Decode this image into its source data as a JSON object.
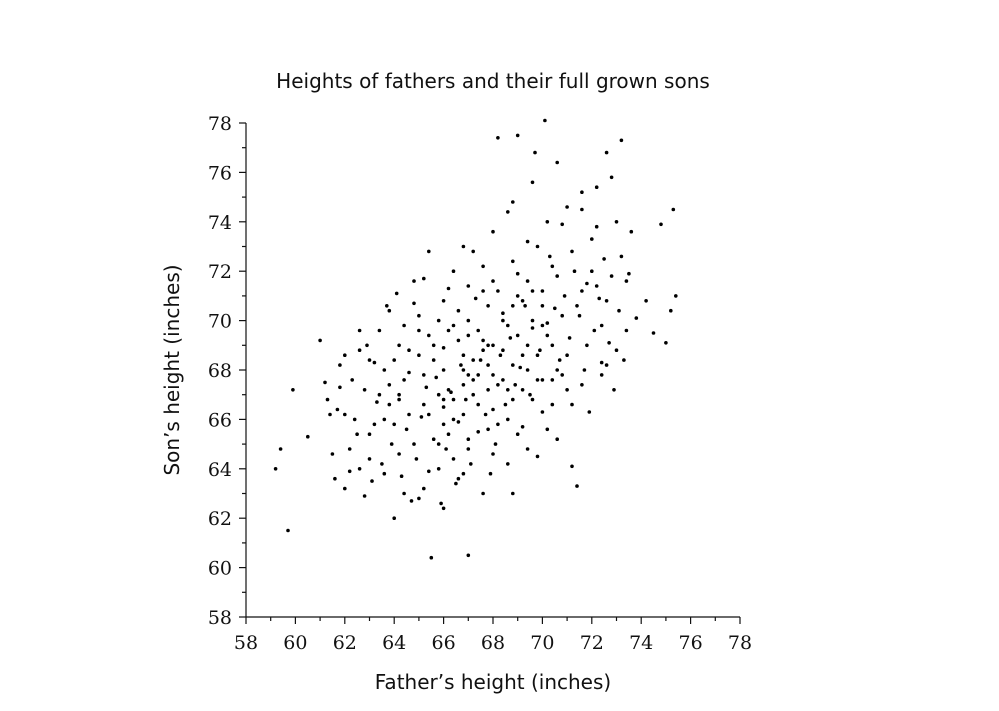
{
  "chart_data": {
    "type": "scatter",
    "title": "Heights of fathers and their full grown sons",
    "xlabel": "Father’s height (inches)",
    "ylabel": "Son’s height (inches)",
    "xlim": [
      58,
      78
    ],
    "ylim": [
      58,
      78
    ],
    "x_ticks": [
      "58",
      "60",
      "62",
      "64",
      "66",
      "68",
      "70",
      "72",
      "74",
      "76",
      "78"
    ],
    "y_ticks": [
      "58",
      "60",
      "62",
      "64",
      "66",
      "68",
      "70",
      "72",
      "74",
      "76",
      "78"
    ],
    "grid": false,
    "legend": "none",
    "point_color": "#000000",
    "points": [
      [
        59.2,
        64.0
      ],
      [
        59.4,
        64.8
      ],
      [
        59.7,
        61.5
      ],
      [
        59.9,
        67.2
      ],
      [
        60.5,
        65.3
      ],
      [
        61.0,
        69.2
      ],
      [
        61.2,
        67.5
      ],
      [
        61.3,
        66.8
      ],
      [
        61.5,
        64.6
      ],
      [
        61.6,
        63.6
      ],
      [
        61.7,
        66.4
      ],
      [
        61.8,
        67.3
      ],
      [
        62.0,
        63.2
      ],
      [
        62.0,
        66.2
      ],
      [
        62.2,
        63.9
      ],
      [
        62.3,
        67.6
      ],
      [
        62.5,
        65.4
      ],
      [
        62.6,
        64.0
      ],
      [
        62.6,
        68.8
      ],
      [
        62.8,
        62.9
      ],
      [
        62.9,
        69.0
      ],
      [
        63.0,
        65.4
      ],
      [
        63.1,
        63.5
      ],
      [
        63.2,
        68.3
      ],
      [
        63.3,
        66.7
      ],
      [
        63.4,
        69.6
      ],
      [
        63.5,
        64.2
      ],
      [
        63.6,
        66.0
      ],
      [
        63.7,
        70.6
      ],
      [
        63.8,
        67.4
      ],
      [
        63.9,
        65.0
      ],
      [
        64.0,
        62.0
      ],
      [
        64.0,
        68.4
      ],
      [
        64.1,
        71.1
      ],
      [
        64.2,
        66.8
      ],
      [
        64.3,
        63.7
      ],
      [
        64.4,
        69.8
      ],
      [
        64.5,
        65.6
      ],
      [
        64.6,
        67.9
      ],
      [
        64.7,
        62.7
      ],
      [
        64.8,
        70.7
      ],
      [
        64.9,
        64.4
      ],
      [
        65.0,
        68.6
      ],
      [
        65.1,
        66.1
      ],
      [
        65.2,
        71.7
      ],
      [
        65.3,
        67.3
      ],
      [
        65.4,
        63.9
      ],
      [
        65.4,
        69.4
      ],
      [
        65.5,
        60.4
      ],
      [
        65.6,
        65.2
      ],
      [
        65.7,
        67.7
      ],
      [
        65.8,
        70.0
      ],
      [
        65.9,
        62.6
      ],
      [
        66.0,
        66.5
      ],
      [
        66.0,
        68.9
      ],
      [
        66.1,
        64.8
      ],
      [
        66.2,
        71.3
      ],
      [
        66.3,
        67.1
      ],
      [
        66.4,
        69.8
      ],
      [
        66.5,
        63.4
      ],
      [
        66.6,
        65.9
      ],
      [
        66.7,
        68.2
      ],
      [
        66.8,
        73.0
      ],
      [
        66.9,
        66.8
      ],
      [
        67.0,
        60.5
      ],
      [
        67.0,
        69.4
      ],
      [
        67.1,
        64.2
      ],
      [
        67.2,
        67.6
      ],
      [
        67.3,
        70.9
      ],
      [
        67.4,
        65.5
      ],
      [
        67.5,
        68.4
      ],
      [
        67.6,
        72.2
      ],
      [
        67.7,
        66.2
      ],
      [
        67.8,
        69.0
      ],
      [
        67.9,
        63.8
      ],
      [
        68.0,
        67.8
      ],
      [
        68.0,
        71.6
      ],
      [
        68.1,
        65.0
      ],
      [
        68.2,
        77.4
      ],
      [
        68.3,
        68.6
      ],
      [
        68.4,
        70.3
      ],
      [
        68.5,
        66.6
      ],
      [
        68.6,
        74.4
      ],
      [
        68.7,
        69.3
      ],
      [
        68.8,
        63.0
      ],
      [
        68.9,
        67.4
      ],
      [
        69.0,
        71.9
      ],
      [
        69.0,
        77.5
      ],
      [
        69.1,
        68.1
      ],
      [
        69.2,
        65.7
      ],
      [
        69.3,
        70.6
      ],
      [
        69.4,
        73.2
      ],
      [
        69.5,
        67.0
      ],
      [
        69.6,
        69.7
      ],
      [
        69.7,
        76.8
      ],
      [
        69.8,
        64.5
      ],
      [
        69.9,
        68.8
      ],
      [
        70.0,
        71.2
      ],
      [
        70.0,
        66.3
      ],
      [
        70.1,
        78.1
      ],
      [
        70.2,
        69.9
      ],
      [
        70.3,
        72.6
      ],
      [
        70.4,
        67.6
      ],
      [
        70.5,
        70.5
      ],
      [
        70.6,
        65.2
      ],
      [
        70.7,
        68.4
      ],
      [
        70.8,
        73.9
      ],
      [
        70.9,
        71.0
      ],
      [
        71.0,
        67.2
      ],
      [
        71.1,
        69.3
      ],
      [
        71.2,
        64.1
      ],
      [
        71.3,
        72.0
      ],
      [
        71.4,
        63.3
      ],
      [
        71.5,
        70.2
      ],
      [
        71.6,
        74.5
      ],
      [
        71.7,
        68.0
      ],
      [
        71.8,
        71.5
      ],
      [
        71.9,
        66.3
      ],
      [
        72.0,
        73.3
      ],
      [
        72.1,
        69.6
      ],
      [
        72.2,
        75.4
      ],
      [
        72.3,
        70.9
      ],
      [
        72.4,
        68.3
      ],
      [
        72.5,
        72.5
      ],
      [
        72.6,
        76.8
      ],
      [
        72.7,
        69.1
      ],
      [
        72.8,
        71.8
      ],
      [
        72.9,
        67.2
      ],
      [
        73.0,
        74.0
      ],
      [
        73.1,
        70.4
      ],
      [
        73.2,
        77.3
      ],
      [
        73.3,
        68.4
      ],
      [
        73.5,
        71.9
      ],
      [
        73.8,
        70.1
      ],
      [
        74.2,
        70.8
      ],
      [
        74.5,
        69.5
      ],
      [
        74.8,
        73.9
      ],
      [
        75.0,
        69.1
      ],
      [
        75.2,
        70.4
      ],
      [
        75.3,
        74.5
      ],
      [
        75.4,
        71.0
      ],
      [
        65.0,
        70.2
      ],
      [
        64.6,
        66.2
      ],
      [
        66.4,
        66.0
      ],
      [
        67.2,
        67.0
      ],
      [
        67.8,
        68.2
      ],
      [
        68.4,
        68.8
      ],
      [
        69.0,
        69.4
      ],
      [
        69.6,
        70.0
      ],
      [
        66.8,
        68.6
      ],
      [
        65.8,
        67.0
      ],
      [
        68.6,
        67.2
      ],
      [
        69.4,
        68.0
      ],
      [
        70.4,
        69.0
      ],
      [
        67.4,
        69.6
      ],
      [
        66.2,
        65.4
      ],
      [
        68.0,
        66.4
      ],
      [
        69.2,
        70.8
      ],
      [
        70.6,
        71.8
      ],
      [
        71.4,
        70.6
      ],
      [
        64.4,
        67.6
      ],
      [
        63.6,
        68.0
      ],
      [
        65.6,
        69.0
      ],
      [
        66.6,
        70.4
      ],
      [
        67.6,
        71.2
      ],
      [
        68.8,
        72.4
      ],
      [
        69.8,
        73.0
      ],
      [
        70.2,
        74.0
      ],
      [
        71.0,
        74.6
      ],
      [
        72.0,
        72.0
      ],
      [
        72.6,
        70.8
      ],
      [
        73.4,
        71.6
      ],
      [
        71.8,
        69.0
      ],
      [
        70.8,
        67.8
      ],
      [
        69.6,
        66.8
      ],
      [
        68.2,
        65.8
      ],
      [
        67.0,
        64.8
      ],
      [
        65.8,
        64.0
      ],
      [
        64.8,
        65.0
      ],
      [
        63.8,
        66.6
      ],
      [
        62.8,
        67.2
      ],
      [
        63.2,
        65.8
      ],
      [
        64.2,
        64.6
      ],
      [
        65.2,
        63.2
      ],
      [
        66.0,
        62.4
      ],
      [
        66.8,
        63.8
      ],
      [
        67.6,
        63.0
      ],
      [
        68.6,
        64.2
      ],
      [
        69.4,
        64.8
      ],
      [
        70.2,
        65.6
      ],
      [
        71.2,
        66.6
      ],
      [
        72.4,
        67.8
      ],
      [
        73.0,
        68.8
      ],
      [
        66.4,
        72.0
      ],
      [
        67.2,
        72.8
      ],
      [
        68.0,
        73.6
      ],
      [
        68.8,
        74.8
      ],
      [
        69.6,
        75.6
      ],
      [
        70.6,
        76.4
      ],
      [
        71.6,
        75.2
      ],
      [
        72.8,
        75.8
      ],
      [
        73.6,
        73.6
      ],
      [
        65.4,
        72.8
      ],
      [
        64.8,
        71.6
      ],
      [
        63.8,
        70.4
      ],
      [
        62.6,
        69.6
      ],
      [
        61.8,
        68.2
      ],
      [
        61.4,
        66.2
      ],
      [
        62.2,
        64.8
      ],
      [
        63.0,
        64.4
      ],
      [
        66.0,
        68.0
      ],
      [
        66.8,
        67.4
      ],
      [
        67.4,
        66.6
      ],
      [
        68.2,
        67.4
      ],
      [
        68.8,
        68.2
      ],
      [
        69.4,
        69.0
      ],
      [
        70.0,
        69.8
      ],
      [
        67.8,
        70.6
      ],
      [
        66.6,
        69.2
      ],
      [
        65.6,
        68.4
      ],
      [
        64.6,
        68.8
      ],
      [
        65.2,
        66.6
      ],
      [
        66.0,
        65.8
      ],
      [
        67.0,
        65.2
      ],
      [
        68.0,
        64.6
      ],
      [
        69.0,
        65.4
      ],
      [
        70.0,
        67.6
      ],
      [
        70.8,
        70.2
      ],
      [
        71.6,
        71.2
      ],
      [
        72.2,
        71.4
      ],
      [
        69.0,
        71.0
      ],
      [
        68.4,
        70.0
      ],
      [
        67.6,
        69.2
      ],
      [
        66.8,
        68.0
      ],
      [
        66.2,
        67.2
      ],
      [
        65.4,
        66.2
      ],
      [
        64.0,
        65.8
      ],
      [
        63.4,
        67.0
      ],
      [
        62.4,
        66.0
      ],
      [
        62.0,
        68.6
      ],
      [
        63.0,
        68.4
      ],
      [
        64.2,
        69.0
      ],
      [
        65.0,
        69.6
      ],
      [
        66.0,
        70.8
      ],
      [
        67.0,
        71.4
      ],
      [
        68.2,
        71.2
      ],
      [
        69.4,
        71.6
      ],
      [
        70.4,
        72.2
      ],
      [
        71.2,
        72.8
      ],
      [
        72.2,
        73.8
      ],
      [
        73.2,
        72.6
      ],
      [
        72.4,
        69.8
      ],
      [
        71.0,
        68.6
      ],
      [
        70.4,
        66.6
      ],
      [
        69.8,
        67.6
      ],
      [
        68.6,
        66.0
      ],
      [
        67.4,
        67.8
      ],
      [
        66.4,
        64.4
      ],
      [
        65.8,
        65.0
      ],
      [
        64.4,
        63.0
      ],
      [
        63.6,
        63.8
      ],
      [
        65.0,
        62.8
      ],
      [
        66.6,
        63.6
      ],
      [
        67.8,
        65.6
      ],
      [
        68.8,
        66.8
      ],
      [
        69.8,
        68.6
      ],
      [
        70.6,
        68.0
      ],
      [
        71.6,
        67.4
      ],
      [
        72.6,
        68.2
      ],
      [
        73.4,
        69.6
      ],
      [
        66.2,
        69.6
      ],
      [
        67.0,
        70.0
      ],
      [
        67.8,
        67.2
      ],
      [
        68.6,
        69.8
      ],
      [
        69.2,
        67.2
      ],
      [
        70.0,
        70.6
      ],
      [
        66.4,
        66.8
      ],
      [
        65.2,
        67.8
      ],
      [
        64.2,
        67.0
      ],
      [
        67.2,
        68.4
      ],
      [
        68.0,
        69.0
      ],
      [
        68.8,
        70.6
      ],
      [
        69.6,
        71.2
      ],
      [
        66.8,
        66.2
      ],
      [
        66.0,
        66.8
      ],
      [
        67.6,
        68.8
      ],
      [
        68.4,
        67.6
      ],
      [
        69.2,
        68.6
      ],
      [
        70.2,
        69.4
      ],
      [
        67.0,
        67.8
      ]
    ]
  }
}
